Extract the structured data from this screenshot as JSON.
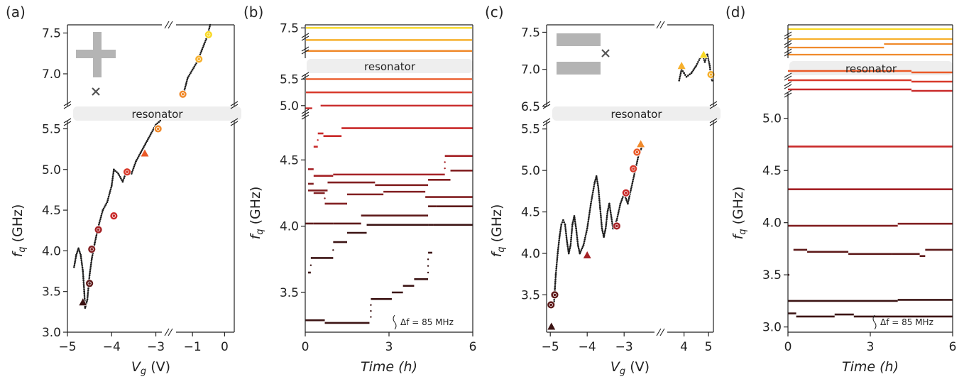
{
  "colors": {
    "ladder": [
      "#f8d824",
      "#f7b02c",
      "#f08a2c",
      "#ea5a28",
      "#d83a2b",
      "#c92a2a",
      "#a52226",
      "#822022",
      "#5e1a1a",
      "#3c1414"
    ],
    "trace": "#1c1c1c",
    "band": "#eeeeee",
    "marker_gray": "#b4b4b4",
    "cross": "#555555"
  },
  "resonator_label": "resonator",
  "chart_data": [
    {
      "panel": "(a)",
      "type": "scatter",
      "xlabel": "V_g (V)",
      "ylabel": "f_q (GHz)",
      "x_segments": [
        [
          -5,
          -2.8
        ],
        [
          -1.6,
          0.3
        ]
      ],
      "x_ticks": [
        -5,
        -4,
        -3,
        -1,
        0
      ],
      "x_tick_labels": [
        "−5",
        "−4",
        "−3",
        "−1",
        "0"
      ],
      "y_upper": [
        6.6,
        7.6
      ],
      "y_upper_ticks": [
        7.0,
        7.5
      ],
      "y_upper_tick_labels": [
        "7.0",
        "7.5"
      ],
      "y_lower": [
        3.0,
        5.6
      ],
      "y_lower_ticks": [
        3.0,
        3.5,
        4.0,
        4.5,
        5.0,
        5.5
      ],
      "y_lower_tick_labels": [
        "3.0",
        "3.5",
        "4.0",
        "4.5",
        "5.0",
        "5.5"
      ],
      "trace_lower": [
        [
          -4.85,
          3.8
        ],
        [
          -4.8,
          3.95
        ],
        [
          -4.75,
          4.03
        ],
        [
          -4.7,
          3.95
        ],
        [
          -4.65,
          3.75
        ],
        [
          -4.62,
          3.5
        ],
        [
          -4.6,
          3.3
        ],
        [
          -4.55,
          3.4
        ],
        [
          -4.5,
          3.7
        ],
        [
          -4.45,
          3.9
        ],
        [
          -4.38,
          4.1
        ],
        [
          -4.3,
          4.3
        ],
        [
          -4.2,
          4.5
        ],
        [
          -4.1,
          4.6
        ],
        [
          -4.0,
          4.8
        ],
        [
          -3.95,
          5.0
        ],
        [
          -3.85,
          4.95
        ],
        [
          -3.75,
          4.85
        ],
        [
          -3.65,
          5.0
        ],
        [
          -3.55,
          4.95
        ],
        [
          -3.45,
          5.1
        ],
        [
          -3.35,
          5.2
        ],
        [
          -3.2,
          5.35
        ],
        [
          -3.0,
          5.55
        ],
        [
          -2.9,
          5.6
        ]
      ],
      "trace_upper": [
        [
          -1.25,
          6.8
        ],
        [
          -1.15,
          6.95
        ],
        [
          -1.0,
          7.05
        ],
        [
          -0.85,
          7.15
        ],
        [
          -0.7,
          7.3
        ],
        [
          -0.55,
          7.45
        ],
        [
          -0.45,
          7.6
        ]
      ],
      "markers": [
        {
          "x": -4.65,
          "y": 3.37,
          "shape": "triangle",
          "color_index": 9
        },
        {
          "x": -4.5,
          "y": 3.6,
          "shape": "circle",
          "color_index": 8
        },
        {
          "x": -4.45,
          "y": 4.02,
          "shape": "circle",
          "color_index": 7
        },
        {
          "x": -4.3,
          "y": 4.26,
          "shape": "circle",
          "color_index": 6
        },
        {
          "x": -3.95,
          "y": 4.43,
          "shape": "circle",
          "color_index": 5
        },
        {
          "x": -3.65,
          "y": 4.97,
          "shape": "circle",
          "color_index": 4
        },
        {
          "x": -3.25,
          "y": 5.2,
          "shape": "triangle",
          "color_index": 3
        },
        {
          "x": -2.95,
          "y": 5.5,
          "shape": "circle",
          "color_index": 2
        },
        {
          "x": -1.3,
          "y": 6.75,
          "shape": "circle",
          "color_index": 2
        },
        {
          "x": -0.8,
          "y": 7.18,
          "shape": "circle",
          "color_index": 1
        },
        {
          "x": -0.5,
          "y": 7.48,
          "shape": "circle",
          "color_index": 0
        }
      ],
      "inset_marker": "plus"
    },
    {
      "panel": "(b)",
      "type": "scatter",
      "xlabel": "Time (h)",
      "ylabel": "f_q (GHz)",
      "x_range": [
        0,
        6
      ],
      "x_ticks": [
        0,
        3,
        6
      ],
      "x_tick_labels": [
        "0",
        "3",
        "6"
      ],
      "y_upper": [
        7.0,
        7.55
      ],
      "y_upper_ticks": [
        7.5
      ],
      "y_upper_tick_labels": [
        "7.5"
      ],
      "y_mid": [
        4.85,
        5.6
      ],
      "y_mid_ticks": [
        5.0,
        5.5
      ],
      "y_mid_tick_labels": [
        "5.0",
        "5.5"
      ],
      "y_lower": [
        3.2,
        4.85
      ],
      "y_lower_ticks": [
        3.5,
        4.0,
        4.5
      ],
      "y_lower_tick_labels": [
        "3.5",
        "4.0",
        "4.5"
      ],
      "annotation": "Δf = 85 MHz",
      "upper_lines": [
        {
          "y": 7.5,
          "color_index": 0
        },
        {
          "y": 7.3,
          "color_index": 1
        },
        {
          "y": 7.12,
          "color_index": 2
        }
      ],
      "mid_lines": [
        {
          "y": 5.5,
          "color_index": 3
        },
        {
          "y": 5.25,
          "color_index": 4
        },
        {
          "y": 5.0,
          "color_index": 5,
          "segments": [
            [
              0,
              0.25,
              4.95
            ],
            [
              0.55,
              6,
              5.0
            ]
          ]
        }
      ],
      "lower_traces": [
        {
          "color_index": 5,
          "segments": [
            [
              0.3,
              0.45,
              4.6
            ],
            [
              0.45,
              0.65,
              4.7
            ],
            [
              0.65,
              1.3,
              4.68
            ],
            [
              1.3,
              6,
              4.74
            ]
          ]
        },
        {
          "color_index": 6,
          "segments": [
            [
              0.1,
              0.3,
              4.43
            ],
            [
              0.3,
              1.0,
              4.38
            ],
            [
              1.0,
              5.0,
              4.39
            ],
            [
              5.0,
              6,
              4.53
            ]
          ]
        },
        {
          "color_index": 7,
          "segments": [
            [
              0.1,
              0.8,
              4.27
            ],
            [
              0.8,
              2.5,
              4.33
            ],
            [
              2.5,
              4.4,
              4.31
            ],
            [
              4.4,
              5.2,
              4.35
            ],
            [
              5.2,
              6,
              4.42
            ]
          ]
        },
        {
          "color_index": 7,
          "segments": [
            [
              0.1,
              0.3,
              4.32
            ],
            [
              0.3,
              0.7,
              4.25
            ],
            [
              0.7,
              1.5,
              4.17
            ],
            [
              1.5,
              2.8,
              4.24
            ],
            [
              2.8,
              4.3,
              4.26
            ],
            [
              4.3,
              6,
              4.22
            ]
          ]
        },
        {
          "color_index": 8,
          "segments": [
            [
              0.0,
              0.3,
              4.02
            ],
            [
              0.3,
              1.0,
              4.02
            ],
            [
              1.0,
              2.0,
              4.02
            ],
            [
              2.0,
              4.4,
              4.08
            ],
            [
              4.4,
              4.7,
              4.15
            ],
            [
              4.7,
              6,
              4.15
            ]
          ]
        },
        {
          "color_index": 9,
          "segments": [
            [
              0.1,
              0.2,
              3.65
            ],
            [
              0.2,
              1.0,
              3.76
            ],
            [
              1.0,
              1.5,
              3.88
            ],
            [
              1.5,
              2.2,
              3.95
            ],
            [
              2.2,
              4.4,
              4.01
            ],
            [
              4.4,
              4.6,
              4.01
            ],
            [
              4.6,
              6,
              4.01
            ]
          ]
        },
        {
          "color_index": 9,
          "segments": [
            [
              0.0,
              0.7,
              3.29
            ],
            [
              0.7,
              2.3,
              3.27
            ],
            [
              2.35,
              3.1,
              3.45
            ],
            [
              3.1,
              3.5,
              3.5
            ],
            [
              3.5,
              3.9,
              3.55
            ],
            [
              3.9,
              4.4,
              3.6
            ],
            [
              4.4,
              4.55,
              3.8
            ]
          ]
        }
      ]
    },
    {
      "panel": "(c)",
      "type": "scatter",
      "xlabel": "V_g (V)",
      "ylabel": "f_q (GHz)",
      "x_segments": [
        [
          -5.1,
          -2.1
        ],
        [
          3.2,
          5.2
        ]
      ],
      "x_ticks": [
        -5,
        -4,
        -3,
        4,
        5
      ],
      "x_tick_labels": [
        "−5",
        "−4",
        "−3",
        "4",
        "5"
      ],
      "y_upper": [
        6.5,
        7.6
      ],
      "y_upper_ticks": [
        6.5,
        7.0,
        7.5
      ],
      "y_upper_tick_labels": [
        "6.5",
        "7.0",
        "7.5"
      ],
      "y_lower": [
        3.05,
        5.6
      ],
      "y_lower_ticks": [
        3.5,
        4.0,
        4.5,
        5.0,
        5.5
      ],
      "y_lower_tick_labels": [
        "3.5",
        "4.0",
        "4.5",
        "5.0",
        "5.5"
      ],
      "trace_lower": [
        [
          -4.9,
          3.4
        ],
        [
          -4.85,
          3.75
        ],
        [
          -4.8,
          4.0
        ],
        [
          -4.75,
          4.2
        ],
        [
          -4.7,
          4.35
        ],
        [
          -4.65,
          4.4
        ],
        [
          -4.6,
          4.35
        ],
        [
          -4.55,
          4.15
        ],
        [
          -4.5,
          4.0
        ],
        [
          -4.45,
          4.1
        ],
        [
          -4.4,
          4.35
        ],
        [
          -4.35,
          4.45
        ],
        [
          -4.3,
          4.3
        ],
        [
          -4.25,
          4.1
        ],
        [
          -4.2,
          4.0
        ],
        [
          -4.1,
          4.1
        ],
        [
          -4.0,
          4.3
        ],
        [
          -3.9,
          4.6
        ],
        [
          -3.8,
          4.85
        ],
        [
          -3.75,
          4.93
        ],
        [
          -3.7,
          4.8
        ],
        [
          -3.65,
          4.55
        ],
        [
          -3.6,
          4.3
        ],
        [
          -3.55,
          4.2
        ],
        [
          -3.5,
          4.3
        ],
        [
          -3.45,
          4.5
        ],
        [
          -3.4,
          4.6
        ],
        [
          -3.35,
          4.45
        ],
        [
          -3.3,
          4.3
        ],
        [
          -3.2,
          4.4
        ],
        [
          -3.1,
          4.6
        ],
        [
          -3.0,
          4.72
        ],
        [
          -2.9,
          4.6
        ],
        [
          -2.8,
          4.8
        ],
        [
          -2.7,
          5.0
        ],
        [
          -2.6,
          5.2
        ],
        [
          -2.5,
          5.3
        ]
      ],
      "trace_upper": [
        [
          3.8,
          6.85
        ],
        [
          3.9,
          7.0
        ],
        [
          4.0,
          6.95
        ],
        [
          4.1,
          6.9
        ],
        [
          4.3,
          6.95
        ],
        [
          4.5,
          7.05
        ],
        [
          4.65,
          7.15
        ],
        [
          4.75,
          7.2
        ],
        [
          4.85,
          7.1
        ],
        [
          4.95,
          7.2
        ],
        [
          5.05,
          7.05
        ],
        [
          5.1,
          6.9
        ],
        [
          5.15,
          6.85
        ]
      ],
      "markers": [
        {
          "x": -4.97,
          "y": 3.12,
          "shape": "triangle",
          "color_index": 9
        },
        {
          "x": -4.98,
          "y": 3.38,
          "shape": "circle",
          "color_index": 8
        },
        {
          "x": -4.88,
          "y": 3.5,
          "shape": "circle",
          "color_index": 8
        },
        {
          "x": -4.0,
          "y": 3.98,
          "shape": "triangle",
          "color_index": 6
        },
        {
          "x": -3.2,
          "y": 4.33,
          "shape": "circle",
          "color_index": 6
        },
        {
          "x": -2.95,
          "y": 4.73,
          "shape": "circle",
          "color_index": 5
        },
        {
          "x": -2.75,
          "y": 5.02,
          "shape": "circle",
          "color_index": 4
        },
        {
          "x": -2.65,
          "y": 5.22,
          "shape": "circle",
          "color_index": 3
        },
        {
          "x": -2.55,
          "y": 5.32,
          "shape": "triangle",
          "color_index": 2
        },
        {
          "x": 3.9,
          "y": 7.05,
          "shape": "triangle",
          "color_index": 1
        },
        {
          "x": 4.8,
          "y": 7.2,
          "shape": "triangle",
          "color_index": 0
        },
        {
          "x": 5.1,
          "y": 6.93,
          "shape": "circle",
          "color_index": 1
        }
      ],
      "inset_marker": "gap"
    },
    {
      "panel": "(d)",
      "type": "scatter",
      "xlabel": "Time (h)",
      "ylabel": "f_q (GHz)",
      "x_range": [
        0,
        6
      ],
      "x_ticks": [
        0,
        3,
        6
      ],
      "x_tick_labels": [
        "0",
        "3",
        "6"
      ],
      "y_lower": [
        2.95,
        5.25
      ],
      "y_lower_ticks": [
        3.0,
        3.5,
        4.0,
        4.5,
        5.0
      ],
      "y_lower_tick_labels": [
        "3.0",
        "3.5",
        "4.0",
        "4.5",
        "5.0"
      ],
      "annotation": "Δf = 85 MHz",
      "upper_lines": [
        {
          "color_index": 0,
          "segments": [
            [
              0,
              6,
              0
            ]
          ]
        },
        {
          "color_index": 1,
          "segments": [
            [
              0,
              6,
              1
            ]
          ]
        },
        {
          "color_index": 2,
          "segments": [
            [
              0,
              3.5,
              2
            ],
            [
              3.5,
              6,
              1.7
            ]
          ]
        },
        {
          "color_index": 2,
          "segments": [
            [
              0,
              6,
              3
            ]
          ]
        }
      ],
      "mid_lines": [
        {
          "color_index": 3,
          "segments": [
            [
              0,
              4.5,
              0
            ],
            [
              4.5,
              6,
              0.2
            ]
          ]
        },
        {
          "color_index": 4,
          "segments": [
            [
              0,
              4.5,
              1
            ],
            [
              4.5,
              6,
              1.2
            ]
          ]
        },
        {
          "color_index": 5,
          "segments": [
            [
              0,
              4.5,
              2
            ],
            [
              4.5,
              6,
              2.2
            ]
          ]
        }
      ],
      "lower_traces": [
        {
          "color_index": 5,
          "segments": [
            [
              0,
              6,
              4.73
            ]
          ]
        },
        {
          "color_index": 6,
          "segments": [
            [
              0,
              6,
              4.32
            ]
          ]
        },
        {
          "color_index": 7,
          "segments": [
            [
              0,
              4.0,
              3.97
            ],
            [
              4.0,
              6,
              3.99
            ]
          ]
        },
        {
          "color_index": 8,
          "segments": [
            [
              0.2,
              0.7,
              3.74
            ],
            [
              0.7,
              2.2,
              3.72
            ],
            [
              2.2,
              3.8,
              3.7
            ],
            [
              3.8,
              4.8,
              3.7
            ],
            [
              4.8,
              5.0,
              3.68
            ],
            [
              5.0,
              6,
              3.74
            ]
          ]
        },
        {
          "color_index": 9,
          "segments": [
            [
              0,
              0.05,
              3.5
            ],
            [
              0,
              4.0,
              3.25
            ],
            [
              4.0,
              6,
              3.26
            ]
          ]
        },
        {
          "color_index": 9,
          "segments": [
            [
              0,
              0.3,
              3.13
            ],
            [
              0.3,
              1.7,
              3.1
            ],
            [
              1.7,
              2.4,
              3.12
            ],
            [
              2.4,
              6,
              3.1
            ]
          ]
        }
      ]
    }
  ]
}
